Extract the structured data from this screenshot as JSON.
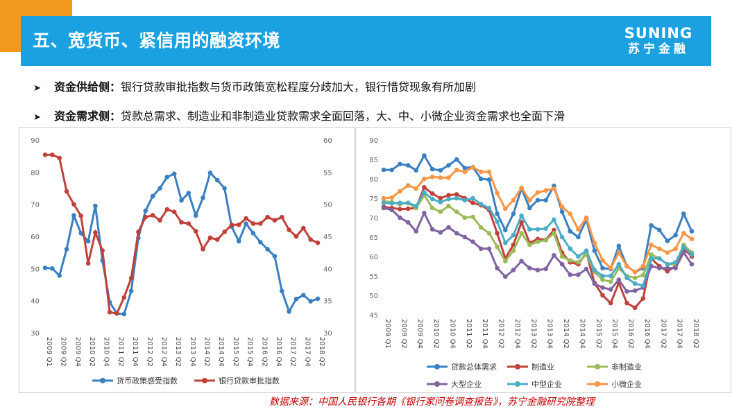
{
  "header": {
    "title": "五、宽货币、紧信用的融资环境",
    "logo_en": "SUNING",
    "logo_cn": "苏宁金融"
  },
  "bullets": [
    {
      "head": "资金供给侧：",
      "text": "银行贷款审批指数与货币政策宽松程度分歧加大，银行惜贷现象有所加剧"
    },
    {
      "head": "资金需求侧：",
      "text": "贷款总需求、制造业和非制造业贷款需求全面回落，大、中、小微企业资金需求也全面下滑"
    }
  ],
  "source": "数据来源：中国人民银行各期《银行家问卷调查报告》，苏宁金融研究院整理",
  "chart_data": [
    {
      "type": "line",
      "x_ticks": [
        "2009 Q1",
        "2009 Q2",
        "2009 Q4",
        "2010 Q2",
        "2010 Q4",
        "2011 Q2",
        "2011 Q4",
        "2012 Q2",
        "2012 Q4",
        "2013 Q2",
        "2013 Q4",
        "2014 Q2",
        "2014 Q4",
        "2015 Q2",
        "2015 Q4",
        "2016 Q2",
        "2016 Q4",
        "2017 Q2",
        "2017 Q4",
        "2018 Q2"
      ],
      "y_left_ticks": [
        "90",
        "80",
        "70",
        "60",
        "50",
        "40",
        "30"
      ],
      "y_right_ticks": [
        "60",
        "55",
        "50",
        "45",
        "40",
        "35",
        "30"
      ],
      "ylim_left": [
        30,
        90
      ],
      "ylim_right": [
        30,
        60
      ],
      "legend_position": "bottom",
      "series": [
        {
          "name": "货币政策感受指数",
          "axis": "left",
          "color": "#3a7fc1",
          "values": [
            50.2,
            50.0,
            47.8,
            56.0,
            66.5,
            61.0,
            58.5,
            69.5,
            52.5,
            39.5,
            36.0,
            35.8,
            43.0,
            59.5,
            68.0,
            72.5,
            75.0,
            78.5,
            79.5,
            71.2,
            73.5,
            66.5,
            72.0,
            79.8,
            77.5,
            75.0,
            63.0,
            58.5,
            64.0,
            61.0,
            58.2,
            56.0,
            53.8,
            43.0,
            36.6,
            40.5,
            41.7,
            39.8,
            40.6
          ]
        },
        {
          "name": "银行贷款审批指数",
          "axis": "right",
          "color": "#c0403a",
          "values": [
            57.7,
            57.7,
            57.2,
            52.0,
            50.0,
            48.2,
            40.8,
            45.6,
            42.8,
            33.2,
            33.0,
            35.5,
            38.5,
            45.7,
            48.0,
            48.3,
            47.5,
            49.2,
            48.8,
            47.2,
            47.0,
            45.8,
            43.0,
            44.8,
            44.5,
            45.7,
            46.8,
            46.8,
            47.8,
            47.0,
            47.0,
            48.0,
            47.5,
            48.0,
            46.0,
            45.0,
            46.3,
            44.5,
            44.0
          ]
        }
      ]
    },
    {
      "type": "line",
      "x_ticks": [
        "2009 Q1",
        "2009 Q2",
        "2009 Q4",
        "2010 Q2",
        "2010 Q4",
        "2011 Q2",
        "2011 Q4",
        "2012 Q2",
        "2012 Q4",
        "2013 Q2",
        "2013 Q4",
        "2014 Q2",
        "2014 Q4",
        "2015 Q2",
        "2015 Q4",
        "2016 Q2",
        "2016 Q4",
        "2017 Q2",
        "2017 Q4",
        "2018 Q2"
      ],
      "y_ticks": [
        "90",
        "85",
        "80",
        "75",
        "70",
        "65",
        "60",
        "55",
        "50",
        "45"
      ],
      "ylim": [
        45,
        90
      ],
      "legend_position": "bottom",
      "series": [
        {
          "name": "贷款总体需求",
          "color": "#3a7fc1",
          "values": [
            82.3,
            82.3,
            83.8,
            83.5,
            82.2,
            86.0,
            82.5,
            82.2,
            83.5,
            85.0,
            82.8,
            83.0,
            80.0,
            79.8,
            71.0,
            66.8,
            71.0,
            77.5,
            72.5,
            74.5,
            74.5,
            78.2,
            71.5,
            66.5,
            65.0,
            69.5,
            61.5,
            57.0,
            56.8,
            62.7,
            57.5,
            56.0,
            57.0,
            68.0,
            66.8,
            64.0,
            65.5,
            71.0,
            66.5
          ]
        },
        {
          "name": "制造业",
          "color": "#c0403a",
          "values": [
            72.8,
            72.5,
            72.2,
            72.3,
            72.5,
            77.8,
            76.2,
            75.0,
            75.8,
            76.0,
            75.0,
            73.8,
            73.2,
            72.0,
            66.0,
            59.5,
            63.0,
            68.8,
            63.5,
            64.5,
            64.3,
            66.8,
            61.0,
            58.5,
            58.0,
            61.0,
            53.2,
            50.0,
            48.0,
            53.2,
            48.0,
            46.8,
            49.2,
            59.5,
            57.5,
            56.2,
            57.5,
            62.0,
            60.0
          ]
        },
        {
          "name": "非制造业",
          "color": "#9bbb59",
          "values": [
            74.2,
            74.0,
            73.5,
            73.8,
            72.5,
            75.8,
            72.5,
            71.5,
            73.0,
            71.5,
            70.0,
            70.2,
            67.5,
            66.0,
            62.5,
            58.8,
            61.5,
            66.0,
            63.0,
            63.8,
            64.2,
            66.0,
            60.0,
            59.0,
            58.5,
            60.5,
            56.0,
            54.0,
            53.5,
            57.0,
            55.0,
            54.5,
            55.2,
            60.5,
            59.5,
            58.0,
            58.0,
            63.0,
            61.0
          ]
        },
        {
          "name": "大型企业",
          "color": "#8064a2",
          "values": [
            72.5,
            72.0,
            70.0,
            68.8,
            66.5,
            71.2,
            67.0,
            66.2,
            67.5,
            66.0,
            65.0,
            63.8,
            62.0,
            62.0,
            57.0,
            54.8,
            56.5,
            58.8,
            57.0,
            56.5,
            56.8,
            60.3,
            58.0,
            55.3,
            55.3,
            56.8,
            53.0,
            52.0,
            51.5,
            54.0,
            51.0,
            51.2,
            52.0,
            57.5,
            57.0,
            57.0,
            57.0,
            61.0,
            58.0
          ]
        },
        {
          "name": "中型企业",
          "color": "#4bacc6",
          "values": [
            73.8,
            73.7,
            73.8,
            73.8,
            73.0,
            76.5,
            74.8,
            74.0,
            74.8,
            75.0,
            74.5,
            75.0,
            73.5,
            72.5,
            69.0,
            63.5,
            65.5,
            70.5,
            67.0,
            67.0,
            67.2,
            69.5,
            65.0,
            62.0,
            60.0,
            61.5,
            56.5,
            55.0,
            55.0,
            58.0,
            54.5,
            53.0,
            52.5,
            59.5,
            59.5,
            58.0,
            58.5,
            62.5,
            60.5
          ]
        },
        {
          "name": "小微企业",
          "color": "#f79646",
          "values": [
            75.0,
            75.2,
            76.8,
            78.3,
            77.5,
            80.0,
            80.5,
            80.3,
            80.3,
            82.3,
            81.8,
            83.0,
            81.8,
            81.8,
            76.3,
            72.3,
            74.5,
            77.7,
            74.5,
            76.5,
            77.0,
            77.5,
            72.8,
            71.0,
            67.0,
            70.0,
            63.5,
            59.0,
            57.0,
            61.0,
            57.5,
            56.0,
            57.5,
            63.0,
            62.0,
            61.0,
            62.0,
            66.0,
            64.5
          ]
        }
      ]
    }
  ]
}
